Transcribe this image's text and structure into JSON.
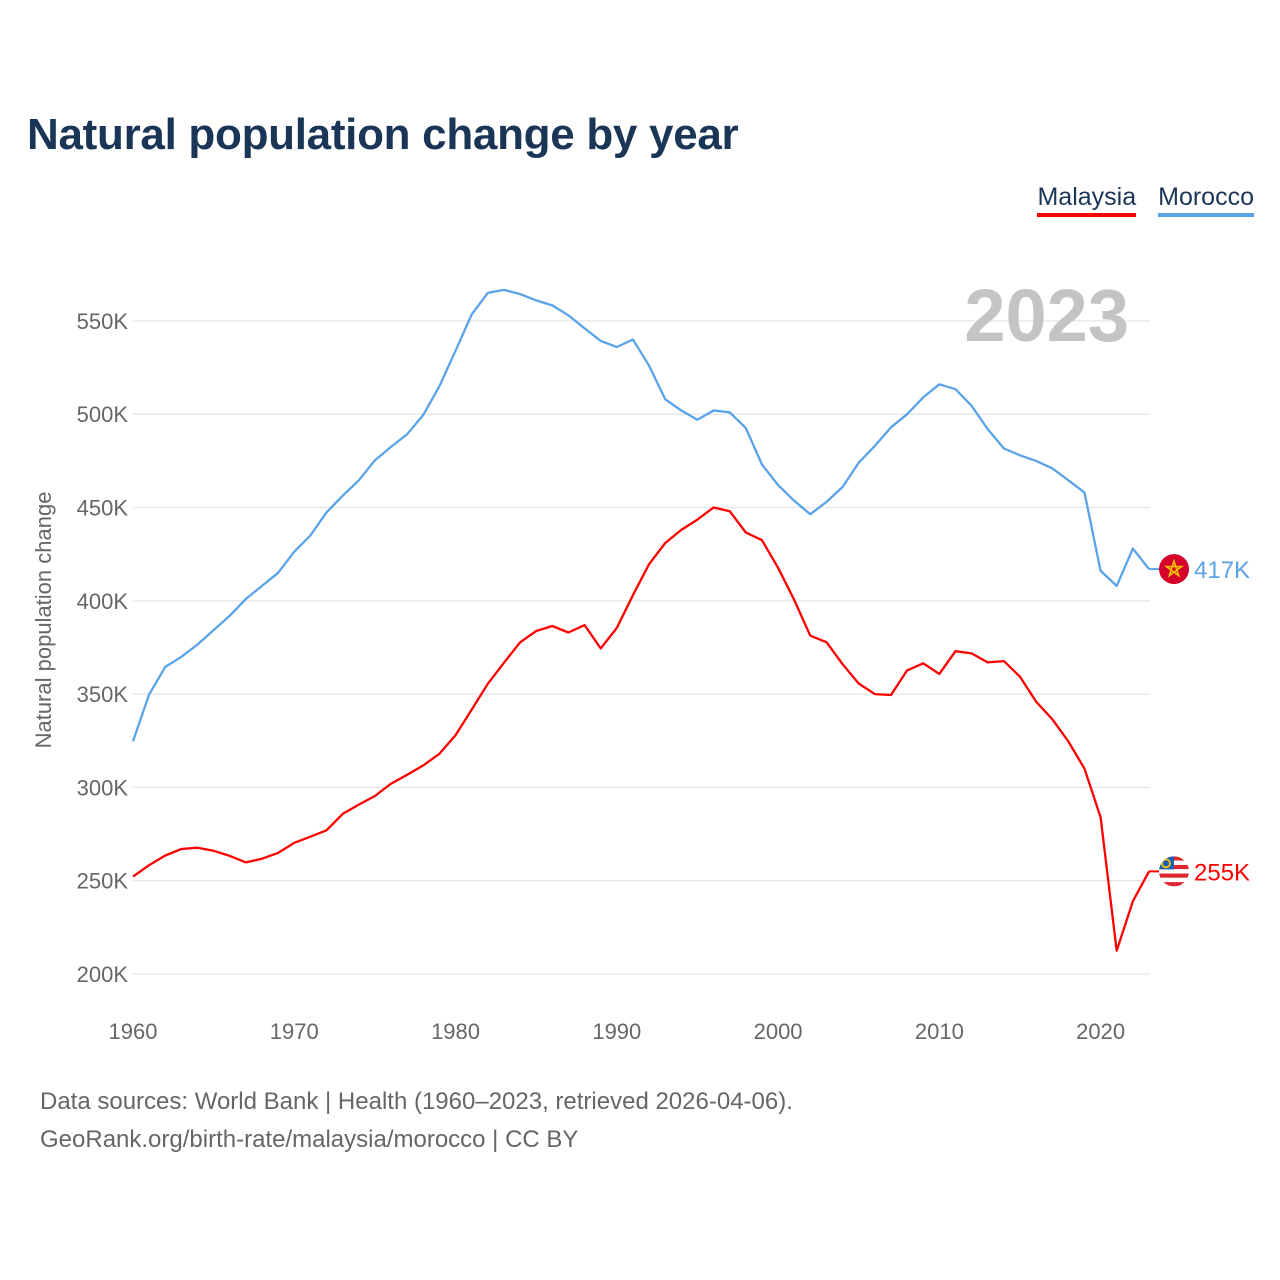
{
  "chart_data": {
    "type": "line",
    "title": "Natural population change by year",
    "ylabel": "Natural population change",
    "xlabel": "",
    "year_label": "2023",
    "x": [
      1960,
      1961,
      1962,
      1963,
      1964,
      1965,
      1966,
      1967,
      1968,
      1969,
      1970,
      1971,
      1972,
      1973,
      1974,
      1975,
      1976,
      1977,
      1978,
      1979,
      1980,
      1981,
      1982,
      1983,
      1984,
      1985,
      1986,
      1987,
      1988,
      1989,
      1990,
      1991,
      1992,
      1993,
      1994,
      1995,
      1996,
      1997,
      1998,
      1999,
      2000,
      2001,
      2002,
      2003,
      2004,
      2005,
      2006,
      2007,
      2008,
      2009,
      2010,
      2011,
      2012,
      2013,
      2014,
      2015,
      2016,
      2017,
      2018,
      2019,
      2020,
      2021,
      2022,
      2023
    ],
    "xlim": [
      1960,
      2023
    ],
    "ylim": [
      200000,
      570000
    ],
    "xticks": [
      1960,
      1970,
      1980,
      1990,
      2000,
      2010,
      2020
    ],
    "xtick_labels": [
      "1960",
      "1970",
      "1980",
      "1990",
      "2000",
      "2010",
      "2020"
    ],
    "yticks": [
      200000,
      250000,
      300000,
      350000,
      400000,
      450000,
      500000,
      550000
    ],
    "ytick_labels": [
      "200K",
      "250K",
      "300K",
      "350K",
      "400K",
      "450K",
      "500K",
      "550K"
    ],
    "grid": true,
    "legend_position": "top-right",
    "series": [
      {
        "name": "Malaysia",
        "color": "#ff0000",
        "end_label": "255K",
        "flag": "malaysia-flag",
        "values": [
          252200,
          258300,
          263500,
          267000,
          267700,
          266000,
          263300,
          259800,
          261800,
          264900,
          270300,
          273600,
          277000,
          285800,
          290800,
          295400,
          302000,
          306800,
          311800,
          318000,
          328000,
          341700,
          355500,
          366800,
          377700,
          383800,
          386500,
          383000,
          387000,
          374500,
          385400,
          403000,
          419600,
          431000,
          438000,
          443500,
          450000,
          448000,
          436600,
          432500,
          417700,
          400500,
          381300,
          377800,
          366000,
          355700,
          350000,
          349500,
          362700,
          366500,
          360800,
          373000,
          371800,
          367000,
          367700,
          359300,
          346000,
          336600,
          324600,
          310000,
          284000,
          212500,
          239000,
          255000
        ]
      },
      {
        "name": "Morocco",
        "color": "#5ba3e8",
        "end_label": "417K",
        "flag": "morocco-flag",
        "values": [
          324700,
          349800,
          364600,
          370000,
          376600,
          384300,
          392000,
          401000,
          408000,
          415000,
          426300,
          435000,
          447400,
          456300,
          464600,
          475300,
          482500,
          489300,
          499600,
          515000,
          534000,
          553500,
          565000,
          566600,
          564400,
          561000,
          558300,
          553000,
          546000,
          539300,
          536000,
          540000,
          526000,
          508000,
          502000,
          497000,
          502000,
          501000,
          492600,
          473000,
          462000,
          453600,
          446400,
          453000,
          461000,
          474000,
          483000,
          493000,
          500000,
          509000,
          516000,
          513400,
          504500,
          492000,
          481600,
          478000,
          475000,
          471000,
          464600,
          458000,
          416000,
          408000,
          428000,
          417000
        ]
      }
    ]
  },
  "footer": {
    "line1": "Data sources: World Bank | Health (1960–2023, retrieved 2026-04-06).",
    "line2": "GeoRank.org/birth-rate/malaysia/morocco | CC BY"
  }
}
